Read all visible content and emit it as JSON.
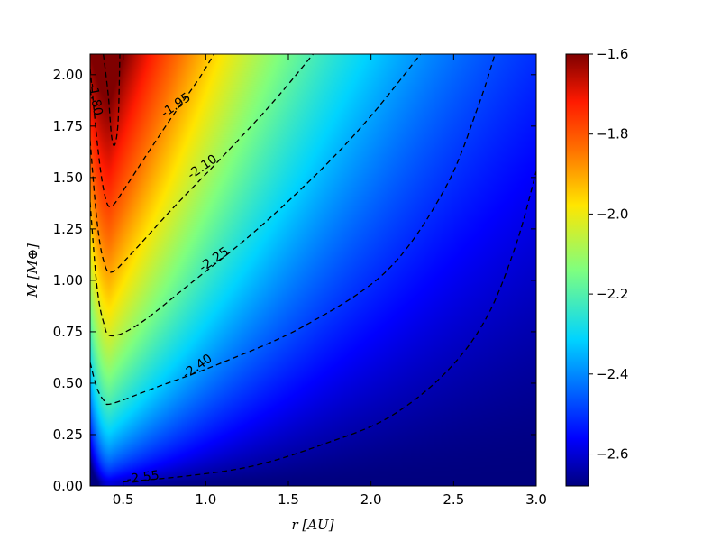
{
  "chart_data": {
    "type": "heatmap",
    "title": "",
    "xlabel": "r [AU]",
    "ylabel": "M [M⊕]",
    "xlim": [
      0.3,
      3.0
    ],
    "ylim": [
      0.0,
      2.1
    ],
    "x_ticks": [
      0.5,
      1.0,
      1.5,
      2.0,
      2.5,
      3.0
    ],
    "x_tick_labels": [
      "0.5",
      "1.0",
      "1.5",
      "2.0",
      "2.5",
      "3.0"
    ],
    "y_ticks": [
      0.0,
      0.25,
      0.5,
      0.75,
      1.0,
      1.25,
      1.5,
      1.75,
      2.0
    ],
    "y_tick_labels": [
      "0.00",
      "0.25",
      "0.50",
      "0.75",
      "1.00",
      "1.25",
      "1.50",
      "1.75",
      "2.00"
    ],
    "colorbar": {
      "colormap": "jet",
      "range": [
        -2.68,
        -1.6
      ],
      "ticks": [
        -1.6,
        -1.8,
        -2.0,
        -2.2,
        -2.4,
        -2.6
      ],
      "tick_labels": [
        "−1.6",
        "−1.8",
        "−2.0",
        "−2.2",
        "−2.4",
        "−2.6"
      ]
    },
    "contours": [
      {
        "level": -1.8,
        "label": "-1.80",
        "label_at": [
          0.33,
          1.88
        ],
        "points": [
          [
            0.38,
            2.1
          ],
          [
            0.41,
            1.9
          ],
          [
            0.43,
            1.7
          ],
          [
            0.45,
            1.66
          ],
          [
            0.47,
            1.78
          ],
          [
            0.48,
            2.1
          ]
        ]
      },
      {
        "level": -1.95,
        "label": "-1.95",
        "label_at": [
          0.82,
          1.85
        ],
        "points": [
          [
            0.3,
            2.03
          ],
          [
            0.35,
            1.62
          ],
          [
            0.39,
            1.41
          ],
          [
            0.43,
            1.36
          ],
          [
            0.52,
            1.46
          ],
          [
            0.65,
            1.62
          ],
          [
            0.8,
            1.8
          ],
          [
            0.95,
            1.97
          ],
          [
            1.05,
            2.1
          ]
        ]
      },
      {
        "level": -2.1,
        "label": "-2.10",
        "label_at": [
          0.98,
          1.55
        ],
        "points": [
          [
            0.3,
            1.68
          ],
          [
            0.34,
            1.3
          ],
          [
            0.38,
            1.1
          ],
          [
            0.43,
            1.04
          ],
          [
            0.55,
            1.13
          ],
          [
            0.8,
            1.35
          ],
          [
            1.1,
            1.6
          ],
          [
            1.4,
            1.86
          ],
          [
            1.65,
            2.1
          ]
        ]
      },
      {
        "level": -2.25,
        "label": "-2.25",
        "label_at": [
          1.05,
          1.1
        ],
        "points": [
          [
            0.3,
            1.38
          ],
          [
            0.34,
            0.98
          ],
          [
            0.38,
            0.8
          ],
          [
            0.43,
            0.73
          ],
          [
            0.6,
            0.79
          ],
          [
            0.9,
            0.98
          ],
          [
            1.3,
            1.24
          ],
          [
            1.7,
            1.54
          ],
          [
            2.0,
            1.8
          ],
          [
            2.3,
            2.1
          ]
        ]
      },
      {
        "level": -2.4,
        "label": "-2.40",
        "label_at": [
          0.95,
          0.58
        ],
        "points": [
          [
            0.3,
            0.6
          ],
          [
            0.34,
            0.48
          ],
          [
            0.38,
            0.42
          ],
          [
            0.43,
            0.4
          ],
          [
            0.7,
            0.48
          ],
          [
            1.1,
            0.6
          ],
          [
            1.6,
            0.78
          ],
          [
            2.1,
            1.05
          ],
          [
            2.45,
            1.45
          ],
          [
            2.65,
            1.85
          ],
          [
            2.75,
            2.1
          ]
        ]
      },
      {
        "level": -2.55,
        "label": "-2.55",
        "label_at": [
          0.62,
          0.04
        ],
        "points": [
          [
            0.5,
            0.02
          ],
          [
            0.9,
            0.05
          ],
          [
            1.3,
            0.1
          ],
          [
            1.7,
            0.2
          ],
          [
            2.1,
            0.33
          ],
          [
            2.45,
            0.55
          ],
          [
            2.7,
            0.82
          ],
          [
            2.88,
            1.18
          ],
          [
            3.0,
            1.53
          ]
        ]
      }
    ]
  }
}
